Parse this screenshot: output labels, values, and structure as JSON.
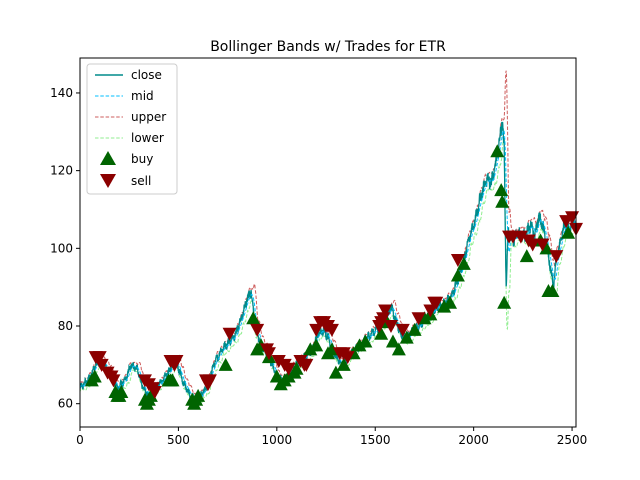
{
  "chart_data": {
    "type": "line",
    "title": "Bollinger Bands w/ Trades for ETR",
    "xlabel": "",
    "ylabel": "",
    "xlim": [
      0,
      2520
    ],
    "ylim": [
      54,
      149
    ],
    "xticks": [
      0,
      500,
      1000,
      1500,
      2000,
      2500
    ],
    "yticks": [
      60,
      80,
      100,
      120,
      140
    ],
    "xtick_labels": [
      "0",
      "500",
      "1000",
      "1500",
      "2000",
      "2500"
    ],
    "ytick_labels": [
      "60",
      "80",
      "100",
      "120",
      "140"
    ],
    "grid": false,
    "legend_position": "top-left",
    "close_anchors": [
      [
        0,
        64
      ],
      [
        40,
        66
      ],
      [
        80,
        70
      ],
      [
        110,
        71
      ],
      [
        150,
        68
      ],
      [
        190,
        64
      ],
      [
        230,
        66
      ],
      [
        260,
        70
      ],
      [
        290,
        69
      ],
      [
        320,
        64
      ],
      [
        350,
        62
      ],
      [
        380,
        64
      ],
      [
        420,
        66
      ],
      [
        460,
        69
      ],
      [
        490,
        71
      ],
      [
        520,
        66
      ],
      [
        560,
        62
      ],
      [
        600,
        61
      ],
      [
        640,
        64
      ],
      [
        680,
        70
      ],
      [
        720,
        74
      ],
      [
        760,
        76
      ],
      [
        790,
        78
      ],
      [
        820,
        82
      ],
      [
        850,
        87
      ],
      [
        870,
        89
      ],
      [
        890,
        80
      ],
      [
        920,
        75
      ],
      [
        960,
        72
      ],
      [
        1000,
        67
      ],
      [
        1030,
        66
      ],
      [
        1060,
        68
      ],
      [
        1100,
        70
      ],
      [
        1140,
        72
      ],
      [
        1180,
        74
      ],
      [
        1210,
        78
      ],
      [
        1240,
        79
      ],
      [
        1270,
        76
      ],
      [
        1300,
        72
      ],
      [
        1330,
        70
      ],
      [
        1360,
        72
      ],
      [
        1400,
        74
      ],
      [
        1440,
        76
      ],
      [
        1480,
        78
      ],
      [
        1520,
        80
      ],
      [
        1560,
        83
      ],
      [
        1580,
        85
      ],
      [
        1600,
        82
      ],
      [
        1630,
        78
      ],
      [
        1660,
        77
      ],
      [
        1700,
        79
      ],
      [
        1740,
        81
      ],
      [
        1780,
        83
      ],
      [
        1820,
        85
      ],
      [
        1860,
        86
      ],
      [
        1890,
        88
      ],
      [
        1920,
        92
      ],
      [
        1950,
        97
      ],
      [
        1980,
        103
      ],
      [
        2010,
        108
      ],
      [
        2040,
        114
      ],
      [
        2070,
        118
      ],
      [
        2090,
        117
      ],
      [
        2110,
        121
      ],
      [
        2130,
        127
      ],
      [
        2145,
        133
      ],
      [
        2155,
        126
      ],
      [
        2165,
        90
      ],
      [
        2175,
        104
      ],
      [
        2200,
        102
      ],
      [
        2230,
        104
      ],
      [
        2260,
        103
      ],
      [
        2290,
        106
      ],
      [
        2310,
        103
      ],
      [
        2330,
        108
      ],
      [
        2350,
        106
      ],
      [
        2370,
        101
      ],
      [
        2390,
        95
      ],
      [
        2405,
        90
      ],
      [
        2420,
        97
      ],
      [
        2440,
        101
      ],
      [
        2460,
        106
      ],
      [
        2480,
        105
      ],
      [
        2500,
        106
      ],
      [
        2520,
        108
      ]
    ],
    "buy_signals": [
      [
        60,
        66
      ],
      [
        75,
        67
      ],
      [
        180,
        63
      ],
      [
        190,
        62
      ],
      [
        200,
        62
      ],
      [
        210,
        63
      ],
      [
        330,
        61
      ],
      [
        340,
        60
      ],
      [
        350,
        61
      ],
      [
        360,
        62
      ],
      [
        450,
        66
      ],
      [
        460,
        66
      ],
      [
        470,
        66
      ],
      [
        570,
        61
      ],
      [
        580,
        60
      ],
      [
        590,
        61
      ],
      [
        600,
        62
      ],
      [
        740,
        70
      ],
      [
        880,
        82
      ],
      [
        900,
        74
      ],
      [
        920,
        75
      ],
      [
        960,
        72
      ],
      [
        1000,
        67
      ],
      [
        1020,
        65
      ],
      [
        1040,
        66
      ],
      [
        1060,
        67
      ],
      [
        1090,
        68
      ],
      [
        1100,
        69
      ],
      [
        1170,
        74
      ],
      [
        1200,
        75
      ],
      [
        1260,
        73
      ],
      [
        1280,
        74
      ],
      [
        1300,
        68
      ],
      [
        1340,
        70
      ],
      [
        1390,
        73
      ],
      [
        1420,
        75
      ],
      [
        1450,
        76
      ],
      [
        1530,
        78
      ],
      [
        1560,
        81
      ],
      [
        1590,
        76
      ],
      [
        1620,
        74
      ],
      [
        1660,
        77
      ],
      [
        1700,
        79
      ],
      [
        1750,
        82
      ],
      [
        1780,
        83
      ],
      [
        1850,
        85
      ],
      [
        1880,
        86
      ],
      [
        1920,
        93
      ],
      [
        1950,
        96
      ],
      [
        2120,
        125
      ],
      [
        2140,
        115
      ],
      [
        2145,
        112
      ],
      [
        2155,
        86
      ],
      [
        2270,
        98
      ],
      [
        2340,
        102
      ],
      [
        2370,
        100
      ],
      [
        2380,
        89
      ],
      [
        2400,
        89
      ],
      [
        2480,
        104
      ]
    ],
    "sell_signals": [
      [
        80,
        72
      ],
      [
        100,
        72
      ],
      [
        110,
        70
      ],
      [
        140,
        68
      ],
      [
        160,
        67
      ],
      [
        170,
        66
      ],
      [
        330,
        66
      ],
      [
        350,
        65
      ],
      [
        370,
        64
      ],
      [
        380,
        63
      ],
      [
        460,
        71
      ],
      [
        470,
        71
      ],
      [
        480,
        70
      ],
      [
        490,
        71
      ],
      [
        640,
        66
      ],
      [
        650,
        65
      ],
      [
        660,
        66
      ],
      [
        760,
        78
      ],
      [
        900,
        79
      ],
      [
        950,
        74
      ],
      [
        960,
        73
      ],
      [
        1010,
        71
      ],
      [
        1040,
        70
      ],
      [
        1060,
        69
      ],
      [
        1120,
        71
      ],
      [
        1140,
        70
      ],
      [
        1150,
        70
      ],
      [
        1200,
        79
      ],
      [
        1220,
        81
      ],
      [
        1240,
        81
      ],
      [
        1250,
        80
      ],
      [
        1260,
        80
      ],
      [
        1280,
        79
      ],
      [
        1320,
        73
      ],
      [
        1340,
        73
      ],
      [
        1360,
        72
      ],
      [
        1520,
        80
      ],
      [
        1530,
        81
      ],
      [
        1540,
        82
      ],
      [
        1550,
        84
      ],
      [
        1580,
        80
      ],
      [
        1640,
        79
      ],
      [
        1720,
        82
      ],
      [
        1780,
        84
      ],
      [
        1800,
        86
      ],
      [
        1810,
        86
      ],
      [
        1920,
        97
      ],
      [
        2180,
        103
      ],
      [
        2200,
        103
      ],
      [
        2240,
        103
      ],
      [
        2280,
        102
      ],
      [
        2300,
        101
      ],
      [
        2350,
        101
      ],
      [
        2420,
        98
      ],
      [
        2470,
        107
      ],
      [
        2500,
        108
      ],
      [
        2520,
        105
      ]
    ],
    "series": [
      {
        "name": "close",
        "color": "#008b8b",
        "style": "solid"
      },
      {
        "name": "mid",
        "color": "#00bfff",
        "style": "dashed"
      },
      {
        "name": "upper",
        "color": "#cd5c5c",
        "style": "dashed"
      },
      {
        "name": "lower",
        "color": "#90ee90",
        "style": "dashed"
      },
      {
        "name": "buy",
        "color": "#006400",
        "style": "marker-triangle-up"
      },
      {
        "name": "sell",
        "color": "#8b0000",
        "style": "marker-triangle-down"
      }
    ]
  }
}
